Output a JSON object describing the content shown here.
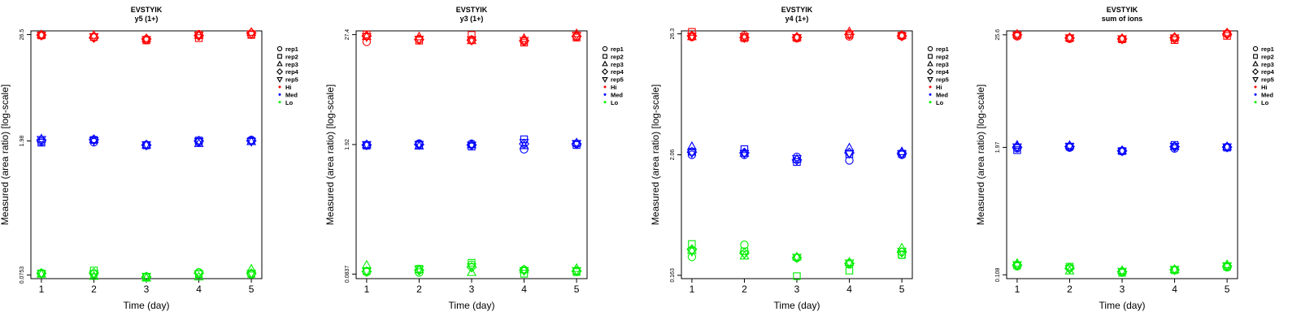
{
  "colors": {
    "Hi": "#ff0000",
    "Med": "#0000ff",
    "Lo": "#00ee00",
    "axis": "#000000"
  },
  "legend_entries": [
    {
      "label": "rep1",
      "kind": "shape",
      "shape": "circle"
    },
    {
      "label": "rep2",
      "kind": "shape",
      "shape": "square"
    },
    {
      "label": "rep3",
      "kind": "shape",
      "shape": "triangle-up"
    },
    {
      "label": "rep4",
      "kind": "shape",
      "shape": "diamond"
    },
    {
      "label": "rep5",
      "kind": "shape",
      "shape": "triangle-down"
    },
    {
      "label": "Hi",
      "kind": "dot",
      "color": "#ff0000"
    },
    {
      "label": "Med",
      "kind": "dot",
      "color": "#0000ff"
    },
    {
      "label": "Lo",
      "kind": "dot",
      "color": "#00ee00"
    }
  ],
  "chart_data": [
    {
      "type": "scatter",
      "title": "EVSTYIK",
      "subtitle": "y5 (1+)",
      "xlabel": "Time (day)",
      "ylabel": "Measured (area ratio) [log-scale]",
      "y_scale": "log",
      "ylim": [
        0.069,
        29.0
      ],
      "x_ticks": [
        1,
        2,
        3,
        4,
        5
      ],
      "y_ticks": [
        0.0753,
        1.98,
        26.5
      ],
      "y_tick_labels": [
        "0.0753",
        "1.98",
        "26.5"
      ],
      "series": [
        {
          "level": "Hi",
          "rep": "rep1",
          "values": [
            25.9,
            24.7,
            23.3,
            26.8,
            26.5
          ]
        },
        {
          "level": "Hi",
          "rep": "rep2",
          "values": [
            26.0,
            24.9,
            23.0,
            24.3,
            26.3
          ]
        },
        {
          "level": "Hi",
          "rep": "rep3",
          "values": [
            26.3,
            26.0,
            24.0,
            26.0,
            28.0
          ]
        },
        {
          "level": "Hi",
          "rep": "rep4",
          "values": [
            26.2,
            24.6,
            23.8,
            25.8,
            27.5
          ]
        },
        {
          "level": "Hi",
          "rep": "rep5",
          "values": [
            26.0,
            25.2,
            23.5,
            26.1,
            27.0
          ]
        },
        {
          "level": "Med",
          "rep": "rep1",
          "values": [
            1.95,
            1.92,
            1.8,
            1.92,
            2.03
          ]
        },
        {
          "level": "Med",
          "rep": "rep2",
          "values": [
            1.9,
            2.03,
            1.78,
            2.0,
            1.97
          ]
        },
        {
          "level": "Med",
          "rep": "rep3",
          "values": [
            2.08,
            2.05,
            1.8,
            1.86,
            1.95
          ]
        },
        {
          "level": "Med",
          "rep": "rep4",
          "values": [
            2.02,
            2.04,
            1.79,
            1.98,
            1.99
          ]
        },
        {
          "level": "Med",
          "rep": "rep5",
          "values": [
            2.05,
            2.0,
            1.81,
            1.96,
            1.96
          ]
        },
        {
          "level": "Lo",
          "rep": "rep1",
          "values": [
            0.079,
            0.077,
            0.0725,
            0.0805,
            0.0765
          ]
        },
        {
          "level": "Lo",
          "rep": "rep2",
          "values": [
            0.078,
            0.084,
            0.0715,
            0.077,
            0.0775
          ]
        },
        {
          "level": "Lo",
          "rep": "rep3",
          "values": [
            0.077,
            0.073,
            0.07,
            0.072,
            0.087
          ]
        },
        {
          "level": "Lo",
          "rep": "rep4",
          "values": [
            0.0785,
            0.079,
            0.072,
            0.079,
            0.078
          ]
        },
        {
          "level": "Lo",
          "rep": "rep5",
          "values": [
            0.078,
            0.078,
            0.073,
            0.0775,
            0.0785
          ]
        }
      ]
    },
    {
      "type": "scatter",
      "title": "EVSTYIK",
      "subtitle": "y3 (1+)",
      "xlabel": "Time (day)",
      "ylabel": "Measured (area ratio) [log-scale]",
      "y_scale": "log",
      "ylim": [
        0.075,
        30.0
      ],
      "x_ticks": [
        1,
        2,
        3,
        4,
        5
      ],
      "y_ticks": [
        0.0837,
        1.92,
        27.4
      ],
      "y_tick_labels": [
        "0.0837",
        "1.92",
        "27.4"
      ],
      "series": [
        {
          "level": "Hi",
          "rep": "rep1",
          "values": [
            23.0,
            24.5,
            24.2,
            23.3,
            26.0
          ]
        },
        {
          "level": "Hi",
          "rep": "rep2",
          "values": [
            27.5,
            23.7,
            27.2,
            22.6,
            25.5
          ]
        },
        {
          "level": "Hi",
          "rep": "rep3",
          "values": [
            26.2,
            26.0,
            23.7,
            25.0,
            28.0
          ]
        },
        {
          "level": "Hi",
          "rep": "rep4",
          "values": [
            26.5,
            24.3,
            24.0,
            23.7,
            26.3
          ]
        },
        {
          "level": "Hi",
          "rep": "rep5",
          "values": [
            26.0,
            24.5,
            24.1,
            23.8,
            27.0
          ]
        },
        {
          "level": "Med",
          "rep": "rep1",
          "values": [
            1.89,
            1.97,
            1.96,
            1.71,
            1.96
          ]
        },
        {
          "level": "Med",
          "rep": "rep2",
          "values": [
            1.87,
            1.89,
            1.83,
            2.18,
            1.9
          ]
        },
        {
          "level": "Med",
          "rep": "rep3",
          "values": [
            1.91,
            1.85,
            1.91,
            1.87,
            2.0
          ]
        },
        {
          "level": "Med",
          "rep": "rep4",
          "values": [
            1.9,
            1.92,
            1.9,
            1.95,
            1.95
          ]
        },
        {
          "level": "Med",
          "rep": "rep5",
          "values": [
            1.92,
            1.93,
            1.89,
            2.02,
            1.97
          ]
        },
        {
          "level": "Lo",
          "rep": "rep1",
          "values": [
            0.088,
            0.087,
            0.105,
            0.093,
            0.089
          ]
        },
        {
          "level": "Lo",
          "rep": "rep2",
          "values": [
            0.09,
            0.095,
            0.11,
            0.0845,
            0.088
          ]
        },
        {
          "level": "Lo",
          "rep": "rep3",
          "values": [
            0.104,
            0.093,
            0.087,
            0.093,
            0.096
          ]
        },
        {
          "level": "Lo",
          "rep": "rep4",
          "values": [
            0.089,
            0.092,
            0.099,
            0.092,
            0.09
          ]
        },
        {
          "level": "Lo",
          "rep": "rep5",
          "values": [
            0.0895,
            0.094,
            0.1,
            0.091,
            0.091
          ]
        }
      ]
    },
    {
      "type": "scatter",
      "title": "EVSTYIK",
      "subtitle": "y4 (1+)",
      "xlabel": "Time (day)",
      "ylabel": "Measured (area ratio) [log-scale]",
      "y_scale": "log",
      "ylim": [
        0.152,
        28.0
      ],
      "x_ticks": [
        1,
        2,
        3,
        4,
        5
      ],
      "y_ticks": [
        0.163,
        2.06,
        26.3
      ],
      "y_tick_labels": [
        "0.163",
        "2.06",
        "26.3"
      ],
      "series": [
        {
          "level": "Hi",
          "rep": "rep1",
          "values": [
            24.6,
            25.5,
            24.0,
            24.9,
            25.0
          ]
        },
        {
          "level": "Hi",
          "rep": "rep2",
          "values": [
            27.4,
            24.0,
            24.1,
            25.8,
            25.4
          ]
        },
        {
          "level": "Hi",
          "rep": "rep3",
          "values": [
            24.8,
            24.5,
            24.6,
            27.5,
            25.6
          ]
        },
        {
          "level": "Hi",
          "rep": "rep4",
          "values": [
            25.2,
            24.3,
            24.4,
            26.0,
            25.2
          ]
        },
        {
          "level": "Hi",
          "rep": "rep5",
          "values": [
            25.0,
            24.8,
            24.3,
            26.3,
            25.1
          ]
        },
        {
          "level": "Med",
          "rep": "rep1",
          "values": [
            2.06,
            2.06,
            1.97,
            1.83,
            2.06
          ]
        },
        {
          "level": "Med",
          "rep": "rep2",
          "values": [
            2.2,
            2.32,
            1.77,
            2.09,
            2.11
          ]
        },
        {
          "level": "Med",
          "rep": "rep3",
          "values": [
            2.45,
            2.13,
            1.88,
            2.38,
            2.2
          ]
        },
        {
          "level": "Med",
          "rep": "rep4",
          "values": [
            2.18,
            2.15,
            1.85,
            2.15,
            2.13
          ]
        },
        {
          "level": "Med",
          "rep": "rep5",
          "values": [
            2.15,
            2.12,
            1.9,
            2.12,
            2.1
          ]
        },
        {
          "level": "Lo",
          "rep": "rep1",
          "values": [
            0.24,
            0.31,
            0.235,
            0.205,
            0.25
          ]
        },
        {
          "level": "Lo",
          "rep": "rep2",
          "values": [
            0.315,
            0.27,
            0.16,
            0.18,
            0.25
          ]
        },
        {
          "level": "Lo",
          "rep": "rep3",
          "values": [
            0.275,
            0.245,
            0.24,
            0.215,
            0.29
          ]
        },
        {
          "level": "Lo",
          "rep": "rep4",
          "values": [
            0.28,
            0.26,
            0.236,
            0.21,
            0.265
          ]
        },
        {
          "level": "Lo",
          "rep": "rep5",
          "values": [
            0.27,
            0.255,
            0.238,
            0.212,
            0.27
          ]
        }
      ]
    },
    {
      "type": "scatter",
      "title": "EVSTYIK",
      "subtitle": "sum of ions",
      "xlabel": "Time (day)",
      "ylabel": "Measured (area ratio) [log-scale]",
      "y_scale": "log",
      "ylim": [
        0.099,
        28.0
      ],
      "x_ticks": [
        1,
        2,
        3,
        4,
        5
      ],
      "y_ticks": [
        0.108,
        1.97,
        25.6
      ],
      "y_tick_labels": [
        "0.108",
        "1.97",
        "25.6"
      ],
      "series": [
        {
          "level": "Hi",
          "rep": "rep1",
          "values": [
            24.7,
            23.4,
            23.2,
            23.5,
            26.4
          ]
        },
        {
          "level": "Hi",
          "rep": "rep2",
          "values": [
            25.3,
            23.7,
            23.1,
            22.7,
            25.0
          ]
        },
        {
          "level": "Hi",
          "rep": "rep3",
          "values": [
            26.0,
            24.0,
            23.6,
            24.3,
            26.8
          ]
        },
        {
          "level": "Hi",
          "rep": "rep4",
          "values": [
            25.6,
            23.8,
            23.3,
            24.0,
            26.0
          ]
        },
        {
          "level": "Hi",
          "rep": "rep5",
          "values": [
            25.4,
            23.9,
            23.4,
            23.9,
            26.2
          ]
        },
        {
          "level": "Med",
          "rep": "rep1",
          "values": [
            1.93,
            1.96,
            1.8,
            1.92,
            1.99
          ]
        },
        {
          "level": "Med",
          "rep": "rep2",
          "values": [
            1.85,
            2.0,
            1.81,
            2.08,
            1.96
          ]
        },
        {
          "level": "Med",
          "rep": "rep3",
          "values": [
            2.07,
            2.06,
            1.83,
            2.01,
            2.0
          ]
        },
        {
          "level": "Med",
          "rep": "rep4",
          "values": [
            1.98,
            2.01,
            1.82,
            2.0,
            1.98
          ]
        },
        {
          "level": "Med",
          "rep": "rep5",
          "values": [
            1.99,
            2.02,
            1.81,
            2.02,
            1.99
          ]
        },
        {
          "level": "Lo",
          "rep": "rep1",
          "values": [
            0.131,
            0.127,
            0.115,
            0.121,
            0.128
          ]
        },
        {
          "level": "Lo",
          "rep": "rep2",
          "values": [
            0.134,
            0.13,
            0.113,
            0.12,
            0.13
          ]
        },
        {
          "level": "Lo",
          "rep": "rep3",
          "values": [
            0.14,
            0.118,
            0.119,
            0.122,
            0.136
          ]
        },
        {
          "level": "Lo",
          "rep": "rep4",
          "values": [
            0.135,
            0.125,
            0.116,
            0.121,
            0.132
          ]
        },
        {
          "level": "Lo",
          "rep": "rep5",
          "values": [
            0.136,
            0.124,
            0.117,
            0.122,
            0.133
          ]
        }
      ]
    }
  ]
}
